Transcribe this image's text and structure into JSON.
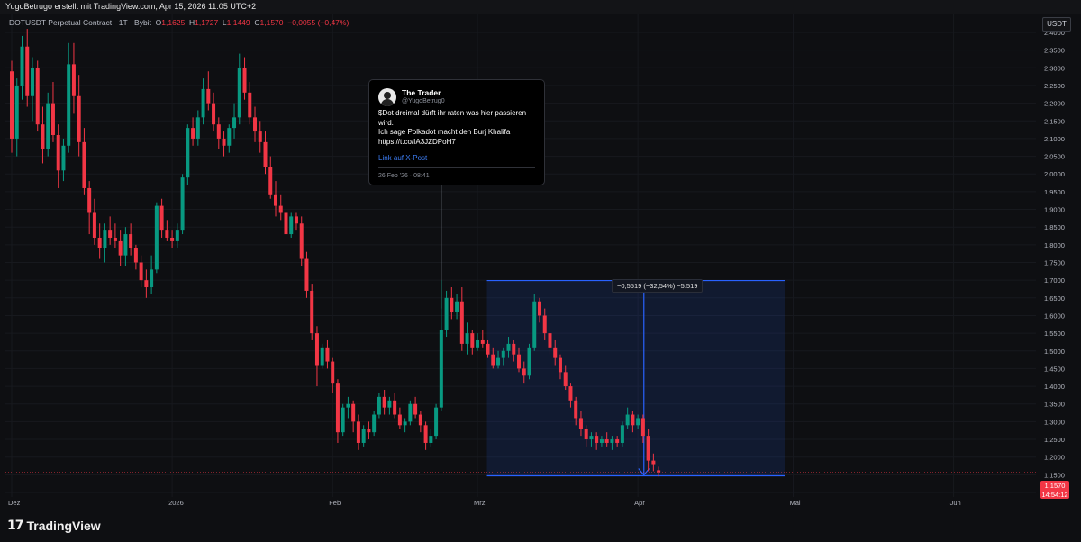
{
  "header": {
    "attribution": "YugoBetrugo erstellt mit TradingView.com, Apr 15, 2026 11:05 UTC+2"
  },
  "legend": {
    "symbol": "DOTUSDT Perpetual Contract · 1T · Bybit",
    "o_label": "O",
    "o_value": "1,1625",
    "h_label": "H",
    "h_value": "1,1727",
    "l_label": "L",
    "l_value": "1,1449",
    "c_label": "C",
    "c_value": "1,1570",
    "change": "−0,0055 (−0,47%)"
  },
  "currency": "USDT",
  "tweet": {
    "name": "The Trader",
    "handle": "@YugoBetrug0",
    "lines": [
      "$Dot dreimal dürft ihr raten was hier passieren",
      "wird.",
      "Ich sage Polkadot macht den Burj Khalifa",
      "https://t.co/IA3JZDPoH7"
    ],
    "link": "Link auf X-Post",
    "date": "26 Feb '26 · 08:41"
  },
  "measure": {
    "label": "−0,5519 (−32,54%) −5.519"
  },
  "price_tag": {
    "value": "1,1570",
    "countdown": "14:54:12"
  },
  "footer": {
    "logo_mark": "17",
    "logo_text": "TradingView"
  },
  "colors": {
    "up": "#089981",
    "down": "#f23645",
    "measure": "#2962ff",
    "background": "#0e0f12"
  },
  "chart_data": {
    "type": "candlestick",
    "symbol": "DOTUSDT",
    "interval": "1T",
    "ylim": [
      1.1,
      2.42
    ],
    "yticks": [
      "2,4000",
      "2,3500",
      "2,3000",
      "2,2500",
      "2,2000",
      "2,1500",
      "2,1000",
      "2,0500",
      "2,0000",
      "1,9500",
      "1,9000",
      "1,8500",
      "1,8000",
      "1,7500",
      "1,7000",
      "1,6500",
      "1,6000",
      "1,5500",
      "1,5000",
      "1,4500",
      "1,4000",
      "1,3500",
      "1,3000",
      "1,2500",
      "1,2000",
      "1,1500",
      "1,1000"
    ],
    "ytick_values": [
      2.4,
      2.35,
      2.3,
      2.25,
      2.2,
      2.15,
      2.1,
      2.05,
      2.0,
      1.95,
      1.9,
      1.85,
      1.8,
      1.75,
      1.7,
      1.65,
      1.6,
      1.55,
      1.5,
      1.45,
      1.4,
      1.35,
      1.3,
      1.25,
      1.2,
      1.15,
      1.1
    ],
    "xticks": [
      {
        "label": "Dez",
        "index": 0
      },
      {
        "label": "2026",
        "index": 31
      },
      {
        "label": "Feb",
        "index": 62
      },
      {
        "label": "Mrz",
        "index": 90
      },
      {
        "label": "Apr",
        "index": 121
      },
      {
        "label": "Mai",
        "index": 151
      },
      {
        "label": "Jun",
        "index": 182
      }
    ],
    "candles": [
      [
        2.29,
        2.32,
        2.06,
        2.1
      ],
      [
        2.1,
        2.27,
        2.05,
        2.25
      ],
      [
        2.25,
        2.39,
        2.21,
        2.36
      ],
      [
        2.36,
        2.41,
        2.19,
        2.22
      ],
      [
        2.22,
        2.33,
        2.15,
        2.3
      ],
      [
        2.3,
        2.32,
        2.12,
        2.14
      ],
      [
        2.14,
        2.19,
        2.03,
        2.07
      ],
      [
        2.07,
        2.23,
        2.05,
        2.2
      ],
      [
        2.2,
        2.26,
        2.09,
        2.11
      ],
      [
        2.11,
        2.14,
        1.96,
        2.01
      ],
      [
        2.01,
        2.1,
        1.98,
        2.08
      ],
      [
        2.08,
        2.37,
        2.06,
        2.31
      ],
      [
        2.31,
        2.37,
        2.17,
        2.22
      ],
      [
        2.22,
        2.28,
        2.05,
        2.09
      ],
      [
        2.09,
        2.13,
        1.94,
        1.96
      ],
      [
        1.96,
        1.98,
        1.83,
        1.89
      ],
      [
        1.89,
        1.93,
        1.8,
        1.82
      ],
      [
        1.82,
        1.86,
        1.76,
        1.79
      ],
      [
        1.79,
        1.86,
        1.75,
        1.84
      ],
      [
        1.84,
        1.88,
        1.8,
        1.82
      ],
      [
        1.82,
        1.86,
        1.79,
        1.81
      ],
      [
        1.81,
        1.84,
        1.74,
        1.77
      ],
      [
        1.77,
        1.85,
        1.74,
        1.83
      ],
      [
        1.83,
        1.86,
        1.77,
        1.79
      ],
      [
        1.79,
        1.8,
        1.73,
        1.75
      ],
      [
        1.75,
        1.77,
        1.68,
        1.7
      ],
      [
        1.7,
        1.73,
        1.65,
        1.68
      ],
      [
        1.68,
        1.77,
        1.66,
        1.73
      ],
      [
        1.73,
        1.92,
        1.72,
        1.91
      ],
      [
        1.91,
        1.93,
        1.82,
        1.84
      ],
      [
        1.84,
        1.87,
        1.81,
        1.82
      ],
      [
        1.82,
        1.84,
        1.79,
        1.81
      ],
      [
        1.81,
        1.86,
        1.79,
        1.84
      ],
      [
        1.84,
        2.0,
        1.83,
        1.99
      ],
      [
        1.99,
        2.14,
        1.97,
        2.13
      ],
      [
        2.13,
        2.16,
        2.08,
        2.1
      ],
      [
        2.1,
        2.18,
        2.08,
        2.16
      ],
      [
        2.16,
        2.27,
        2.14,
        2.24
      ],
      [
        2.24,
        2.29,
        2.18,
        2.2
      ],
      [
        2.2,
        2.23,
        2.12,
        2.14
      ],
      [
        2.14,
        2.16,
        2.07,
        2.1
      ],
      [
        2.1,
        2.12,
        2.05,
        2.08
      ],
      [
        2.08,
        2.14,
        2.06,
        2.13
      ],
      [
        2.13,
        2.2,
        2.1,
        2.16
      ],
      [
        2.16,
        2.34,
        2.14,
        2.3
      ],
      [
        2.3,
        2.33,
        2.21,
        2.23
      ],
      [
        2.23,
        2.26,
        2.14,
        2.16
      ],
      [
        2.16,
        2.19,
        2.09,
        2.12
      ],
      [
        2.12,
        2.15,
        2.06,
        2.09
      ],
      [
        2.09,
        2.12,
        2.0,
        2.02
      ],
      [
        2.02,
        2.05,
        1.93,
        1.94
      ],
      [
        1.94,
        1.98,
        1.88,
        1.91
      ],
      [
        1.91,
        1.94,
        1.87,
        1.89
      ],
      [
        1.89,
        1.9,
        1.81,
        1.83
      ],
      [
        1.83,
        1.89,
        1.82,
        1.88
      ],
      [
        1.88,
        1.89,
        1.84,
        1.86
      ],
      [
        1.86,
        1.88,
        1.74,
        1.76
      ],
      [
        1.76,
        1.78,
        1.65,
        1.67
      ],
      [
        1.67,
        1.69,
        1.53,
        1.55
      ],
      [
        1.55,
        1.57,
        1.4,
        1.46
      ],
      [
        1.46,
        1.52,
        1.45,
        1.51
      ],
      [
        1.51,
        1.53,
        1.45,
        1.47
      ],
      [
        1.47,
        1.48,
        1.38,
        1.41
      ],
      [
        1.41,
        1.42,
        1.24,
        1.27
      ],
      [
        1.27,
        1.35,
        1.26,
        1.34
      ],
      [
        1.34,
        1.37,
        1.31,
        1.35
      ],
      [
        1.35,
        1.36,
        1.27,
        1.3
      ],
      [
        1.3,
        1.32,
        1.22,
        1.24
      ],
      [
        1.24,
        1.29,
        1.23,
        1.28
      ],
      [
        1.28,
        1.3,
        1.25,
        1.27
      ],
      [
        1.27,
        1.33,
        1.26,
        1.32
      ],
      [
        1.32,
        1.38,
        1.31,
        1.37
      ],
      [
        1.37,
        1.39,
        1.32,
        1.34
      ],
      [
        1.34,
        1.37,
        1.32,
        1.36
      ],
      [
        1.36,
        1.38,
        1.31,
        1.32
      ],
      [
        1.32,
        1.34,
        1.28,
        1.29
      ],
      [
        1.29,
        1.31,
        1.27,
        1.3
      ],
      [
        1.3,
        1.36,
        1.29,
        1.35
      ],
      [
        1.35,
        1.37,
        1.31,
        1.32
      ],
      [
        1.32,
        1.33,
        1.27,
        1.29
      ],
      [
        1.29,
        1.3,
        1.22,
        1.24
      ],
      [
        1.24,
        1.28,
        1.23,
        1.26
      ],
      [
        1.26,
        1.35,
        1.25,
        1.34
      ],
      [
        1.34,
        1.7,
        1.33,
        1.56
      ],
      [
        1.56,
        1.67,
        1.54,
        1.65
      ],
      [
        1.65,
        1.68,
        1.59,
        1.61
      ],
      [
        1.61,
        1.66,
        1.59,
        1.64
      ],
      [
        1.64,
        1.68,
        1.5,
        1.52
      ],
      [
        1.52,
        1.58,
        1.49,
        1.55
      ],
      [
        1.55,
        1.56,
        1.49,
        1.51
      ],
      [
        1.51,
        1.55,
        1.5,
        1.53
      ],
      [
        1.53,
        1.56,
        1.51,
        1.52
      ],
      [
        1.52,
        1.53,
        1.48,
        1.49
      ],
      [
        1.49,
        1.51,
        1.45,
        1.46
      ],
      [
        1.46,
        1.5,
        1.45,
        1.48
      ],
      [
        1.48,
        1.51,
        1.46,
        1.5
      ],
      [
        1.5,
        1.54,
        1.48,
        1.52
      ],
      [
        1.52,
        1.53,
        1.47,
        1.49
      ],
      [
        1.49,
        1.51,
        1.44,
        1.45
      ],
      [
        1.45,
        1.47,
        1.41,
        1.43
      ],
      [
        1.43,
        1.52,
        1.42,
        1.51
      ],
      [
        1.51,
        1.66,
        1.5,
        1.64
      ],
      [
        1.64,
        1.65,
        1.58,
        1.6
      ],
      [
        1.6,
        1.62,
        1.53,
        1.55
      ],
      [
        1.55,
        1.57,
        1.49,
        1.51
      ],
      [
        1.51,
        1.53,
        1.46,
        1.48
      ],
      [
        1.48,
        1.49,
        1.42,
        1.44
      ],
      [
        1.44,
        1.46,
        1.39,
        1.4
      ],
      [
        1.4,
        1.41,
        1.34,
        1.36
      ],
      [
        1.36,
        1.37,
        1.29,
        1.31
      ],
      [
        1.31,
        1.33,
        1.26,
        1.28
      ],
      [
        1.28,
        1.29,
        1.23,
        1.25
      ],
      [
        1.25,
        1.27,
        1.23,
        1.26
      ],
      [
        1.26,
        1.27,
        1.22,
        1.24
      ],
      [
        1.24,
        1.26,
        1.23,
        1.25
      ],
      [
        1.25,
        1.27,
        1.23,
        1.24
      ],
      [
        1.24,
        1.26,
        1.22,
        1.25
      ],
      [
        1.25,
        1.26,
        1.23,
        1.24
      ],
      [
        1.24,
        1.3,
        1.23,
        1.29
      ],
      [
        1.29,
        1.34,
        1.28,
        1.32
      ],
      [
        1.32,
        1.33,
        1.27,
        1.29
      ],
      [
        1.29,
        1.32,
        1.28,
        1.31
      ],
      [
        1.31,
        1.32,
        1.24,
        1.26
      ],
      [
        1.26,
        1.28,
        1.16,
        1.19
      ],
      [
        1.19,
        1.21,
        1.16,
        1.18
      ],
      [
        1.1625,
        1.1727,
        1.1449,
        1.157
      ]
    ],
    "measure": {
      "start_index": 92,
      "end_index": 149,
      "from": 1.6989,
      "to": 1.147,
      "change": -0.5519,
      "change_pct": -32.54,
      "ticks": -5519
    },
    "tweet_anchor_index": 83,
    "current_price": 1.157
  }
}
